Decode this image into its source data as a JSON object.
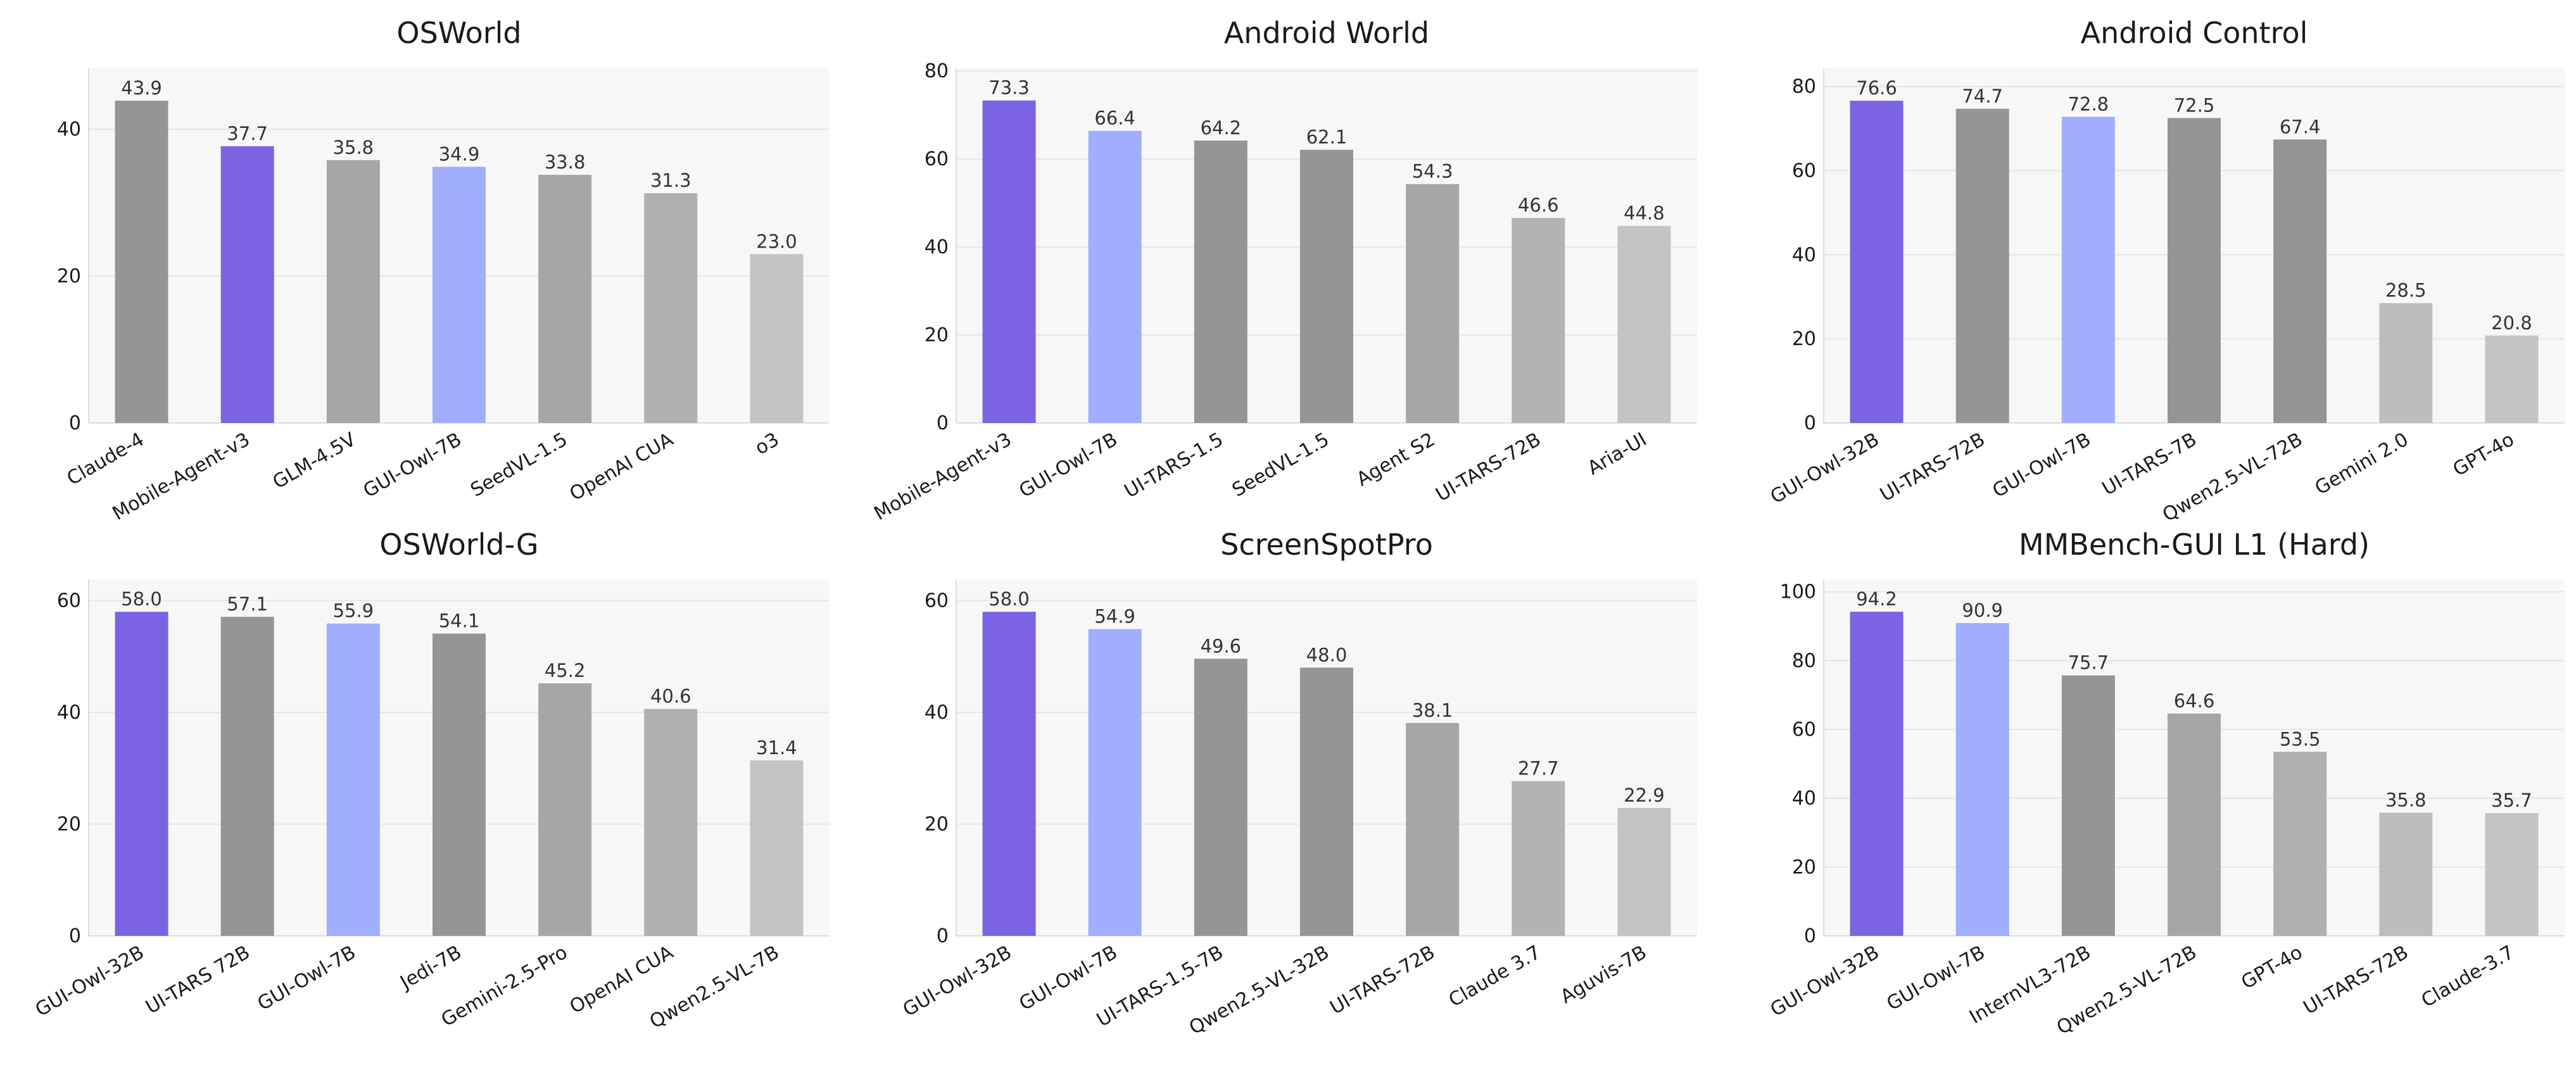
{
  "chart_data": [
    {
      "type": "bar",
      "title": "OSWorld",
      "categories": [
        "Claude-4",
        "Mobile-Agent-v3",
        "GLM-4.5V",
        "GUI-Owl-7B",
        "SeedVL-1.5",
        "OpenAI CUA",
        "o3"
      ],
      "values": [
        43.9,
        37.7,
        35.8,
        34.9,
        33.8,
        31.3,
        23.0
      ],
      "value_labels": [
        "43.9",
        "37.7",
        "35.8",
        "34.9",
        "33.8",
        "31.3",
        "23.0"
      ],
      "colors": [
        "#959595",
        "#7B63E3",
        "#A6A6A6",
        "#A1AEFF",
        "#A6A6A6",
        "#B0B0B0",
        "#C4C4C4"
      ],
      "yticks": [
        0,
        20,
        40
      ],
      "ytick_labels": [
        "0",
        "20",
        "40"
      ],
      "ylim": [
        0,
        48.3
      ],
      "xlabel": "",
      "ylabel": "",
      "grid": true,
      "legend": "none"
    },
    {
      "type": "bar",
      "title": "Android World",
      "categories": [
        "Mobile-Agent-v3",
        "GUI-Owl-7B",
        "UI-TARS-1.5",
        "SeedVL-1.5",
        "Agent S2",
        "UI-TARS-72B",
        "Aria-UI"
      ],
      "values": [
        73.3,
        66.4,
        64.2,
        62.1,
        54.3,
        46.6,
        44.8
      ],
      "value_labels": [
        "73.3",
        "66.4",
        "64.2",
        "62.1",
        "54.3",
        "46.6",
        "44.8"
      ],
      "colors": [
        "#7B63E3",
        "#A1AEFF",
        "#959595",
        "#959595",
        "#A6A6A6",
        "#B3B3B3",
        "#C4C4C4"
      ],
      "yticks": [
        0,
        20,
        40,
        60,
        80
      ],
      "ytick_labels": [
        "0",
        "20",
        "40",
        "60",
        "80"
      ],
      "ylim": [
        0,
        80.6
      ],
      "xlabel": "",
      "ylabel": "",
      "grid": true,
      "legend": "none"
    },
    {
      "type": "bar",
      "title": "Android Control",
      "categories": [
        "GUI-Owl-32B",
        "UI-TARS-72B",
        "GUI-Owl-7B",
        "UI-TARS-7B",
        "Qwen2.5-VL-72B",
        "Gemini 2.0",
        "GPT-4o"
      ],
      "values": [
        76.6,
        74.7,
        72.8,
        72.5,
        67.4,
        28.5,
        20.8
      ],
      "value_labels": [
        "76.6",
        "74.7",
        "72.8",
        "72.5",
        "67.4",
        "28.5",
        "20.8"
      ],
      "colors": [
        "#7B63E3",
        "#959595",
        "#A1AEFF",
        "#959595",
        "#959595",
        "#BDBDBD",
        "#C4C4C4"
      ],
      "yticks": [
        0,
        20,
        40,
        60,
        80
      ],
      "ytick_labels": [
        "0",
        "20",
        "40",
        "60",
        "80"
      ],
      "ylim": [
        0,
        84.3
      ],
      "xlabel": "",
      "ylabel": "",
      "grid": true,
      "legend": "none"
    },
    {
      "type": "bar",
      "title": "OSWorld-G",
      "categories": [
        "GUI-Owl-32B",
        "UI-TARS 72B",
        "GUI-Owl-7B",
        "Jedi-7B",
        "Gemini-2.5-Pro",
        "OpenAI CUA",
        "Qwen2.5-VL-7B"
      ],
      "values": [
        58.0,
        57.1,
        55.9,
        54.1,
        45.2,
        40.6,
        31.4
      ],
      "value_labels": [
        "58.0",
        "57.1",
        "55.9",
        "54.1",
        "45.2",
        "40.6",
        "31.4"
      ],
      "colors": [
        "#7B63E3",
        "#959595",
        "#A1AEFF",
        "#959595",
        "#A6A6A6",
        "#B0B0B0",
        "#C4C4C4"
      ],
      "yticks": [
        0,
        20,
        40,
        60
      ],
      "ytick_labels": [
        "0",
        "20",
        "40",
        "60"
      ],
      "ylim": [
        0,
        63.8
      ],
      "xlabel": "",
      "ylabel": "",
      "grid": true,
      "legend": "none"
    },
    {
      "type": "bar",
      "title": "ScreenSpotPro",
      "categories": [
        "GUI-Owl-32B",
        "GUI-Owl-7B",
        "UI-TARS-1.5-7B",
        "Qwen2.5-VL-32B",
        "UI-TARS-72B",
        "Claude 3.7",
        "Aguvis-7B"
      ],
      "values": [
        58.0,
        54.9,
        49.6,
        48.0,
        38.1,
        27.7,
        22.9
      ],
      "value_labels": [
        "58.0",
        "54.9",
        "49.6",
        "48.0",
        "38.1",
        "27.7",
        "22.9"
      ],
      "colors": [
        "#7B63E3",
        "#A1AEFF",
        "#959595",
        "#959595",
        "#A6A6A6",
        "#B3B3B3",
        "#C4C4C4"
      ],
      "yticks": [
        0,
        20,
        40,
        60
      ],
      "ytick_labels": [
        "0",
        "20",
        "40",
        "60"
      ],
      "ylim": [
        0,
        63.8
      ],
      "xlabel": "",
      "ylabel": "",
      "grid": true,
      "legend": "none"
    },
    {
      "type": "bar",
      "title": "MMBench-GUI L1 (Hard)",
      "categories": [
        "GUI-Owl-32B",
        "GUI-Owl-7B",
        "InternVL3-72B",
        "Qwen2.5-VL-72B",
        "GPT-4o",
        "UI-TARS-72B",
        "Claude-3.7"
      ],
      "values": [
        94.2,
        90.9,
        75.7,
        64.6,
        53.5,
        35.8,
        35.7
      ],
      "value_labels": [
        "94.2",
        "90.9",
        "75.7",
        "64.6",
        "53.5",
        "35.8",
        "35.7"
      ],
      "colors": [
        "#7B63E3",
        "#A1AEFF",
        "#959595",
        "#A6A6A6",
        "#B0B0B0",
        "#BDBDBD",
        "#C4C4C4"
      ],
      "yticks": [
        0,
        20,
        40,
        60,
        80,
        100
      ],
      "ytick_labels": [
        "0",
        "20",
        "40",
        "60",
        "80",
        "100"
      ],
      "ylim": [
        0,
        103.6
      ],
      "xlabel": "",
      "ylabel": "",
      "grid": true,
      "legend": "none"
    }
  ],
  "theme": {
    "panel_background": "#F7F7F7",
    "grid_color": "#E6E6E6",
    "axis_color": "#DDDDDD",
    "text_color": "#1A1A1A"
  }
}
